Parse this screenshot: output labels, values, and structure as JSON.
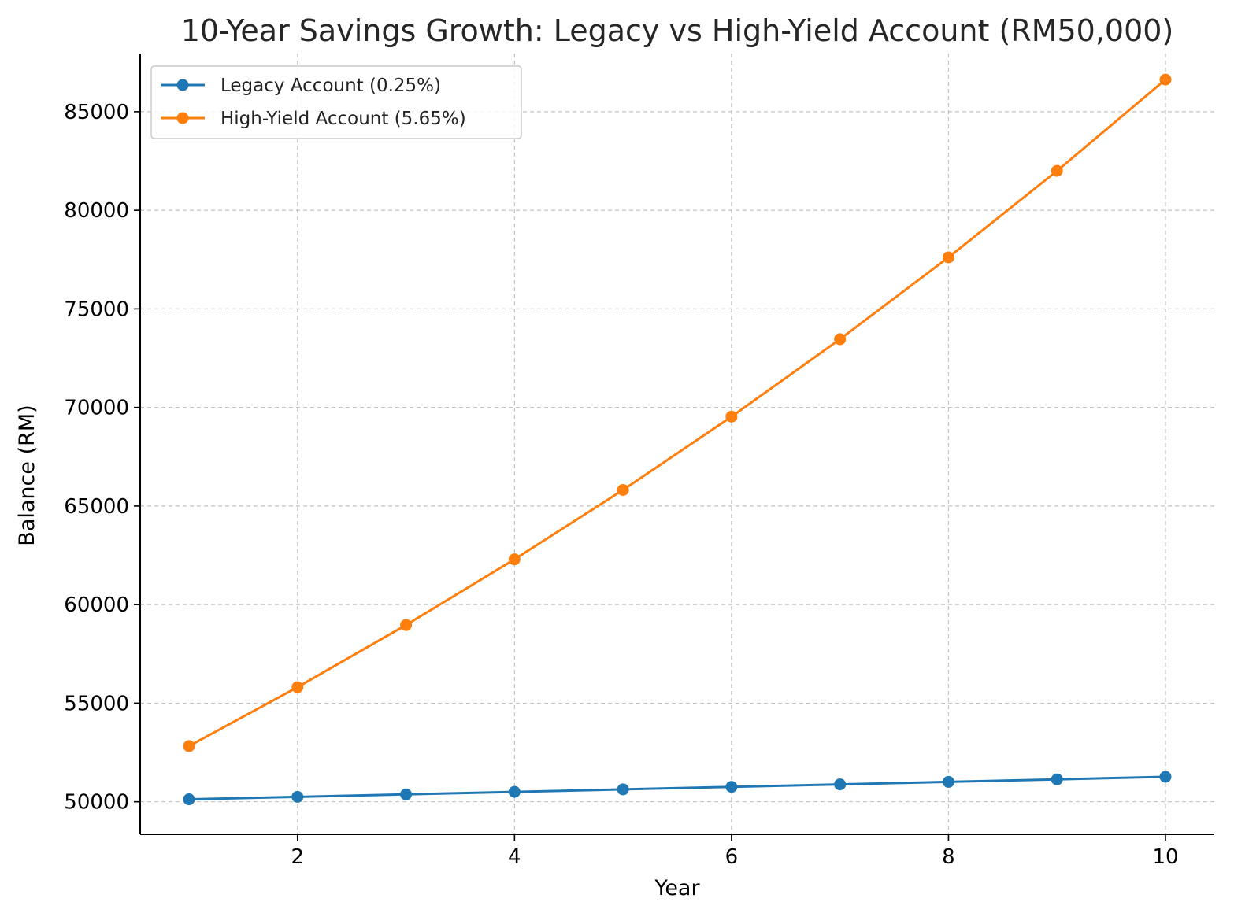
{
  "chart_data": {
    "type": "line",
    "title": "10-Year Savings Growth: Legacy vs High-Yield Account (RM50,000)",
    "xlabel": "Year",
    "ylabel": "Balance (RM)",
    "x": [
      1,
      2,
      3,
      4,
      5,
      6,
      7,
      8,
      9,
      10
    ],
    "xlim": [
      0.55,
      10.45
    ],
    "ylim": [
      48350,
      87950
    ],
    "xticks": [
      2,
      4,
      6,
      8,
      10
    ],
    "yticks": [
      50000,
      55000,
      60000,
      65000,
      70000,
      75000,
      80000,
      85000
    ],
    "grid": true,
    "legend_position": "upper-left",
    "series": [
      {
        "name": "Legacy Account (0.25%)",
        "color": "#1f77b4",
        "marker": "circle",
        "values": [
          50125,
          50250,
          50376,
          50502,
          50628,
          50755,
          50881,
          51009,
          51136,
          51264
        ]
      },
      {
        "name": "High-Yield Account (5.65%)",
        "color": "#ff7f0e",
        "marker": "circle",
        "values": [
          52825,
          55810,
          58963,
          62295,
          65815,
          69533,
          73462,
          77612,
          81997,
          86630
        ]
      }
    ]
  }
}
